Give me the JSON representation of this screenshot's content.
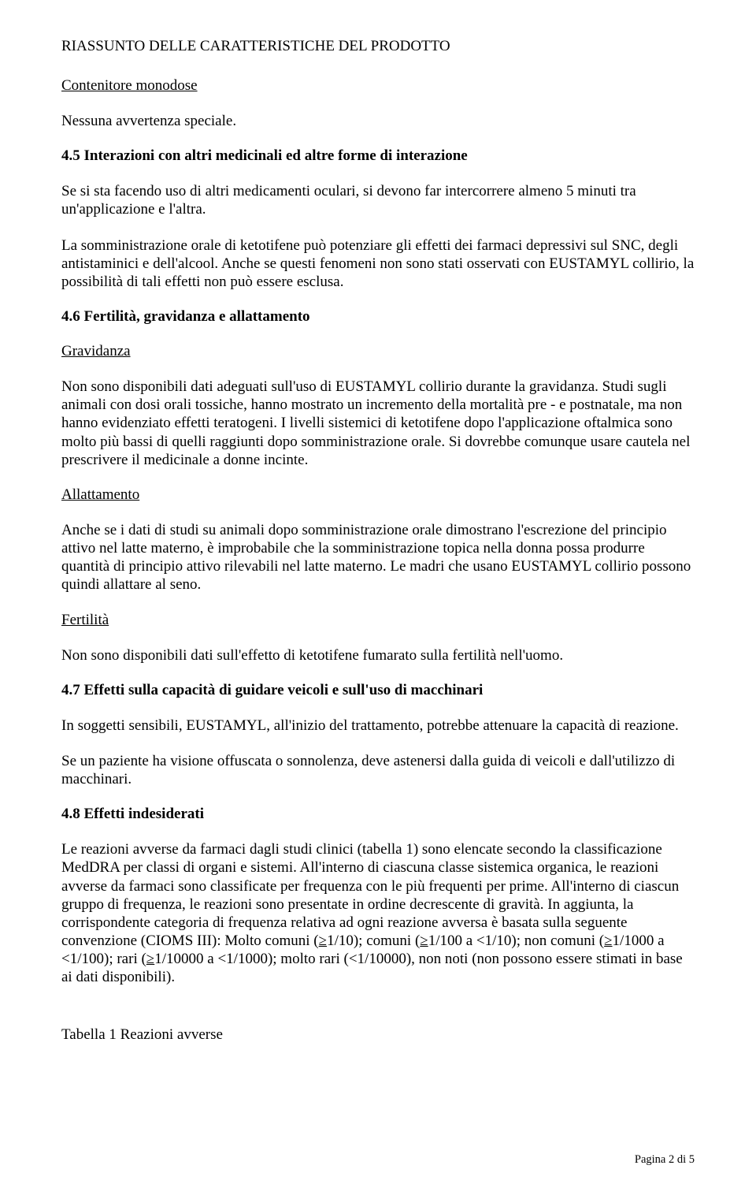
{
  "header": "RIASSUNTO DELLE CARATTERISTICHE DEL PRODOTTO",
  "s_contenitore_title": "Contenitore monodose",
  "s_contenitore_body": "Nessuna avvertenza speciale.",
  "s45_title": "4.5 Interazioni con altri medicinali ed altre forme di interazione",
  "s45_p1": "Se si sta facendo uso di altri medicamenti oculari, si devono far intercorrere almeno 5 minuti tra un'applicazione e l'altra.",
  "s45_p2": "La somministrazione orale di ketotifene può potenziare gli effetti dei farmaci depressivi sul SNC, degli antistaminici e dell'alcool. Anche se questi fenomeni non sono stati osservati con EUSTAMYL collirio, la possibilità di tali effetti non può essere esclusa.",
  "s46_title": "4.6 Fertilità, gravidanza e allattamento",
  "s46_gravidanza_label": "Gravidanza",
  "s46_gravidanza_body": "Non sono disponibili dati adeguati sull'uso di EUSTAMYL collirio durante la gravidanza. Studi sugli animali con dosi orali tossiche, hanno mostrato un incremento della mortalità pre - e postnatale, ma non hanno evidenziato effetti teratogeni. I livelli sistemici di ketotifene dopo l'applicazione oftalmica sono molto più bassi di quelli raggiunti dopo somministrazione orale. Si dovrebbe comunque usare cautela nel prescrivere il medicinale a donne incinte.",
  "s46_allattamento_label": "Allattamento",
  "s46_allattamento_body": "Anche se i dati di studi su animali dopo somministrazione orale dimostrano l'escrezione del principio attivo nel latte materno, è improbabile che la somministrazione topica nella donna possa produrre quantità di principio attivo rilevabili nel latte materno. Le madri che usano EUSTAMYL collirio possono quindi allattare al seno.",
  "s46_fertilita_label": "Fertilità",
  "s46_fertilita_body": "Non sono disponibili dati sull'effetto di ketotifene fumarato sulla fertilità nell'uomo.",
  "s47_title": "4.7 Effetti sulla capacità di guidare veicoli e sull'uso di macchinari",
  "s47_p1": "In soggetti sensibili, EUSTAMYL, all'inizio del trattamento, potrebbe attenuare la capacità di reazione.",
  "s47_p2": "Se un paziente ha visione offuscata o sonnolenza, deve astenersi dalla guida di veicoli e dall'utilizzo di macchinari.",
  "s48_title": "4.8 Effetti indesiderati",
  "s48_p1_a": "Le reazioni avverse da farmaci dagli studi clinici (tabella 1) sono elencate secondo la classificazione MedDRA per classi di organi e sistemi. All'interno di ciascuna classe sistemica organica, le reazioni avverse da farmaci sono classificate per frequenza con le più frequenti per prime. All'interno di ciascun gruppo di frequenza, le reazioni sono presentate in ordine decrescente di gravità. In aggiunta, la corrispondente categoria di frequenza relativa ad ogni reazione avversa è basata sulla seguente convenzione (CIOMS III): Molto comuni (",
  "s48_freq1": "≥",
  "s48_p1_b": "1/10); comuni (",
  "s48_p1_c": "1/100 a <1/10); non comuni (",
  "s48_p1_d": "1/1000 a <1/100); rari (",
  "s48_p1_e": "1/10000 a <1/1000); molto rari (<1/10000), non noti (non possono essere stimati in base ai dati disponibili).",
  "table1_caption": "Tabella 1 Reazioni avverse",
  "footer": "Pagina 2 di 5"
}
